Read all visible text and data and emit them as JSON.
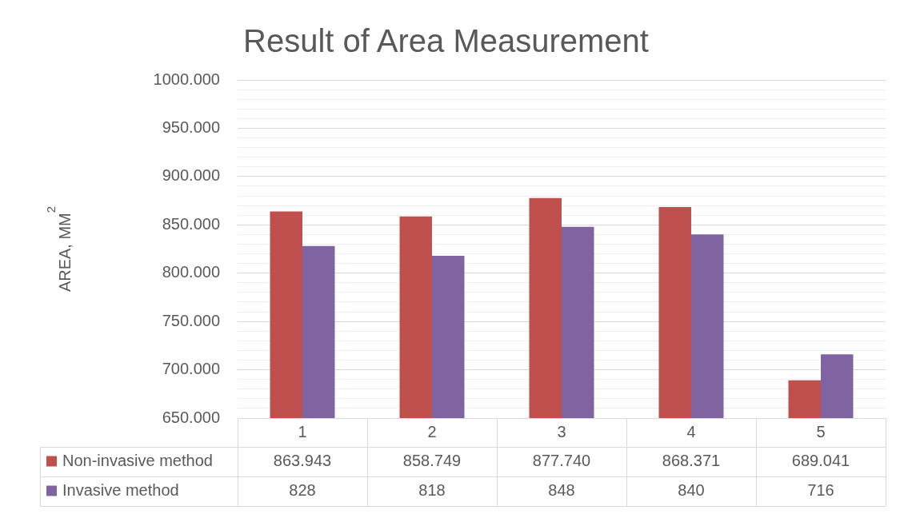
{
  "chart_data": {
    "type": "bar",
    "title": "Result of Area Measurement",
    "ylabel": "AREA, MM$^{2}$",
    "categories": [
      "1",
      "2",
      "3",
      "4",
      "5"
    ],
    "series": [
      {
        "name": "Non-invasive method",
        "color": "#c0504d",
        "values": [
          863.943,
          858.749,
          877.74,
          868.371,
          689.041
        ],
        "value_labels": [
          "863.943",
          "858.749",
          "877.740",
          "868.371",
          "689.041"
        ]
      },
      {
        "name": "Invasive method",
        "color": "#8064a2",
        "values": [
          828,
          818,
          848,
          840,
          716
        ],
        "value_labels": [
          "828",
          "818",
          "848",
          "840",
          "716"
        ]
      }
    ],
    "ylim": [
      650,
      1000
    ],
    "yticks": [
      {
        "value": 650,
        "label": "650.000"
      },
      {
        "value": 660,
        "label": null
      },
      {
        "value": 670,
        "label": null
      },
      {
        "value": 680,
        "label": null
      },
      {
        "value": 690,
        "label": null
      },
      {
        "value": 700,
        "label": "700.000"
      },
      {
        "value": 710,
        "label": null
      },
      {
        "value": 720,
        "label": null
      },
      {
        "value": 730,
        "label": null
      },
      {
        "value": 740,
        "label": null
      },
      {
        "value": 750,
        "label": "750.000"
      },
      {
        "value": 760,
        "label": null
      },
      {
        "value": 770,
        "label": null
      },
      {
        "value": 780,
        "label": null
      },
      {
        "value": 790,
        "label": null
      },
      {
        "value": 800,
        "label": "800.000"
      },
      {
        "value": 810,
        "label": null
      },
      {
        "value": 820,
        "label": null
      },
      {
        "value": 830,
        "label": null
      },
      {
        "value": 840,
        "label": null
      },
      {
        "value": 850,
        "label": "850.000"
      },
      {
        "value": 860,
        "label": null
      },
      {
        "value": 870,
        "label": null
      },
      {
        "value": 880,
        "label": null
      },
      {
        "value": 890,
        "label": null
      },
      {
        "value": 900,
        "label": "900.000"
      },
      {
        "value": 910,
        "label": null
      },
      {
        "value": 920,
        "label": null
      },
      {
        "value": 930,
        "label": null
      },
      {
        "value": 940,
        "label": null
      },
      {
        "value": 950,
        "label": "950.000"
      },
      {
        "value": 960,
        "label": null
      },
      {
        "value": 970,
        "label": null
      },
      {
        "value": 980,
        "label": null
      },
      {
        "value": 990,
        "label": null
      },
      {
        "value": 1000,
        "label": "1000.000"
      }
    ],
    "grid": true,
    "legend": "bottom"
  }
}
